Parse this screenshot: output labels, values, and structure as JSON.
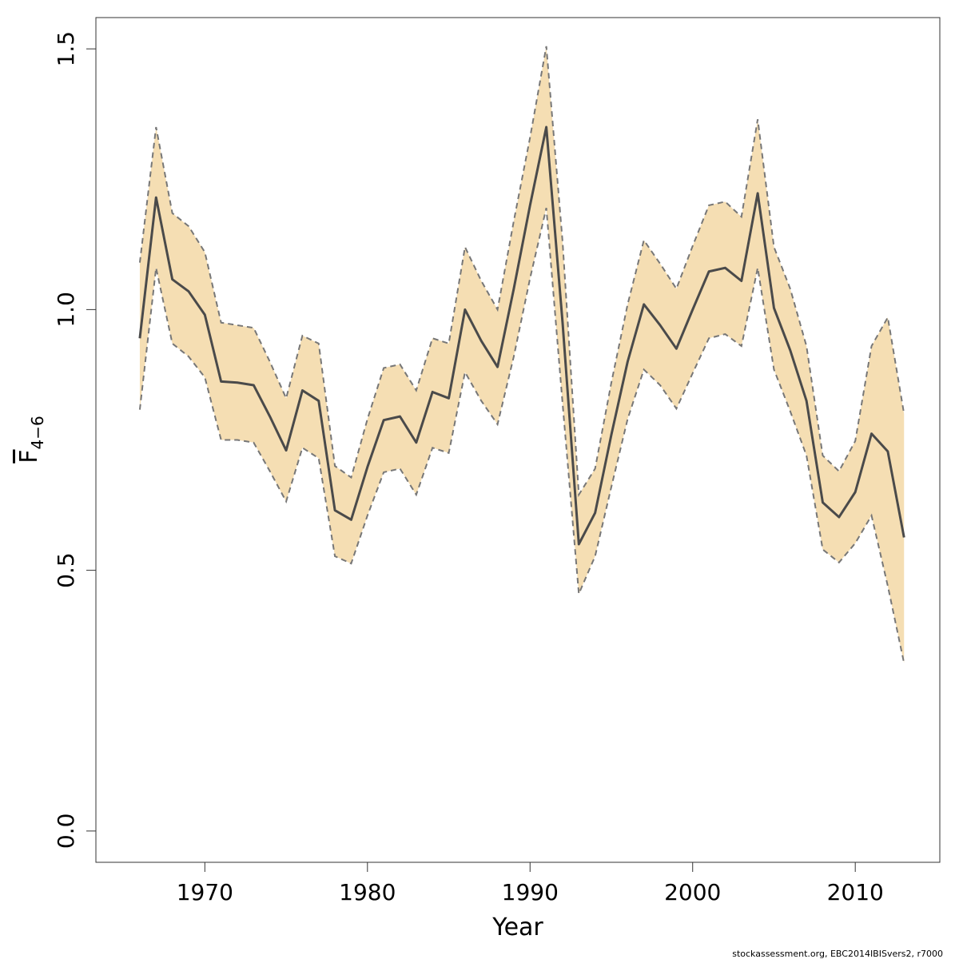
{
  "chart_data": {
    "type": "area",
    "xlabel": "Year",
    "ylabel": {
      "base": "F",
      "subscript": "4−6"
    },
    "x_ticks": [
      1970,
      1980,
      1990,
      2000,
      2010
    ],
    "y_ticks": [
      0.0,
      0.5,
      1.0,
      1.5
    ],
    "y_tick_labels": [
      "0.0",
      "0.5",
      "1.0",
      "1.5"
    ],
    "xlim": [
      1963.3,
      2015.2
    ],
    "ylim": [
      -0.06,
      1.56
    ],
    "colors": {
      "band": "#f5deb3",
      "line": "#4a4a4a",
      "bounds": "#777777"
    },
    "x": [
      1966,
      1967,
      1968,
      1969,
      1970,
      1971,
      1972,
      1973,
      1974,
      1975,
      1976,
      1977,
      1978,
      1979,
      1980,
      1981,
      1982,
      1983,
      1984,
      1985,
      1986,
      1987,
      1988,
      1989,
      1990,
      1991,
      1992,
      1993,
      1994,
      1995,
      1996,
      1997,
      1998,
      1999,
      2000,
      2001,
      2002,
      2003,
      2004,
      2005,
      2006,
      2007,
      2008,
      2009,
      2010,
      2011,
      2012,
      2013
    ],
    "series": [
      {
        "role": "estimate",
        "values": [
          0.945,
          1.215,
          1.058,
          1.035,
          0.99,
          0.862,
          0.86,
          0.855,
          0.795,
          0.73,
          0.845,
          0.825,
          0.615,
          0.597,
          0.698,
          0.788,
          0.795,
          0.745,
          0.842,
          0.83,
          1.0,
          0.94,
          0.89,
          1.04,
          1.2,
          1.35,
          0.975,
          0.55,
          0.61,
          0.76,
          0.9,
          1.01,
          0.97,
          0.925,
          1.0,
          1.073,
          1.08,
          1.055,
          1.223,
          1.003,
          0.922,
          0.825,
          0.63,
          0.602,
          0.65,
          0.762,
          0.728,
          0.563
        ]
      },
      {
        "role": "upper",
        "values": [
          1.09,
          1.35,
          1.185,
          1.16,
          1.11,
          0.975,
          0.97,
          0.965,
          0.9,
          0.83,
          0.95,
          0.935,
          0.7,
          0.678,
          0.79,
          0.888,
          0.895,
          0.845,
          0.945,
          0.935,
          1.12,
          1.055,
          1.0,
          1.17,
          1.33,
          1.505,
          1.13,
          0.645,
          0.695,
          0.86,
          1.01,
          1.133,
          1.088,
          1.04,
          1.122,
          1.2,
          1.207,
          1.178,
          1.365,
          1.12,
          1.04,
          0.93,
          0.72,
          0.69,
          0.748,
          0.93,
          0.985,
          0.8
        ]
      },
      {
        "role": "lower",
        "values": [
          0.808,
          1.08,
          0.935,
          0.91,
          0.87,
          0.75,
          0.75,
          0.745,
          0.69,
          0.632,
          0.735,
          0.715,
          0.527,
          0.513,
          0.605,
          0.688,
          0.695,
          0.645,
          0.735,
          0.725,
          0.88,
          0.825,
          0.78,
          0.91,
          1.06,
          1.195,
          0.82,
          0.455,
          0.527,
          0.66,
          0.79,
          0.885,
          0.855,
          0.81,
          0.878,
          0.945,
          0.953,
          0.93,
          1.08,
          0.885,
          0.805,
          0.72,
          0.54,
          0.515,
          0.552,
          0.605,
          0.47,
          0.322
        ]
      }
    ]
  },
  "credit": "stockassessment.org, EBC2014IBISvers2, r7000"
}
